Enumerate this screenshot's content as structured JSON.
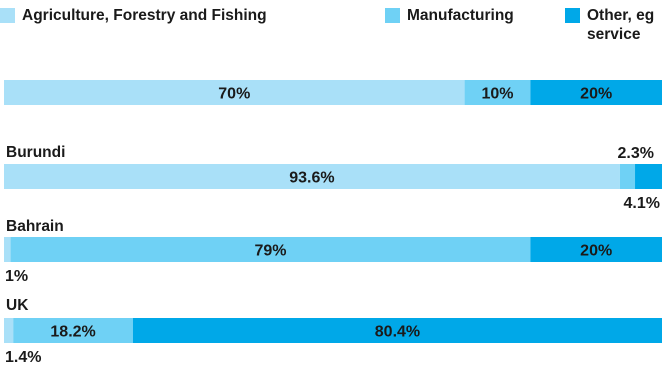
{
  "chart_data": {
    "type": "bar",
    "orientation": "horizontal",
    "stacked": true,
    "title": "",
    "xlabel": "",
    "ylabel": "",
    "categories": [
      "",
      "Burundi",
      "Bahrain",
      "UK"
    ],
    "series": [
      {
        "name": "Agriculture, Forestry and Fishing",
        "color": "#a9e0f8",
        "values": [
          70,
          93.6,
          1,
          1.4
        ],
        "labels": [
          "70%",
          "93.6%",
          "1%",
          "1.4%"
        ]
      },
      {
        "name": "Manufacturing",
        "color": "#6fd1f5",
        "values": [
          10,
          2.3,
          79,
          18.2
        ],
        "labels": [
          "10%",
          "2.3%",
          "79%",
          "18.2%"
        ]
      },
      {
        "name": "Other, eg service",
        "color": "#00a8e8",
        "values": [
          20,
          4.1,
          20,
          80.4
        ],
        "labels": [
          "20%",
          "4.1%",
          "20%",
          "80.4%"
        ]
      }
    ],
    "xlim": [
      0,
      100
    ],
    "grid": false,
    "legend_position": "top"
  },
  "legend": {
    "items": [
      {
        "label": "Agriculture, Forestry and Fishing",
        "color": "#a9e0f8"
      },
      {
        "label": "Manufacturing",
        "color": "#6fd1f5"
      },
      {
        "label": "Other, eg\nservice",
        "color": "#00a8e8"
      }
    ]
  }
}
